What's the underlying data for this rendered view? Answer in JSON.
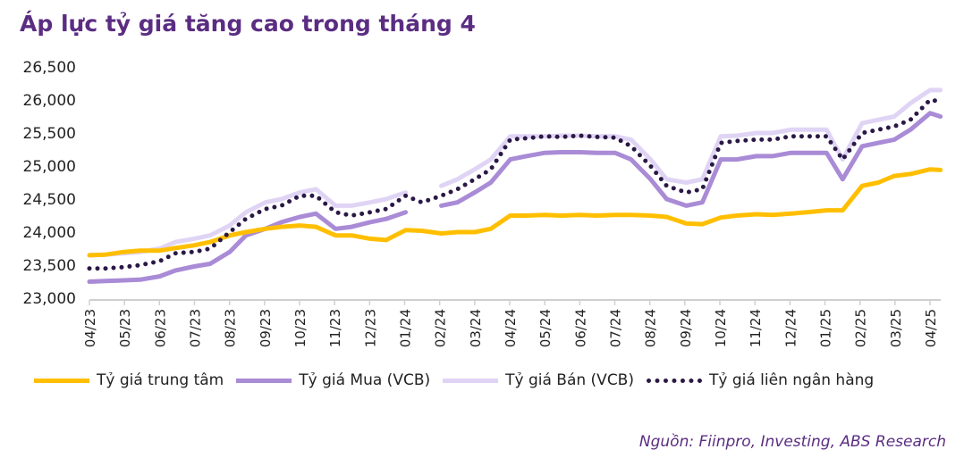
{
  "title": "Áp lực tỷ giá tăng cao trong tháng 4",
  "source": "Nguồn: Fiinpro, Investing, ABS Research",
  "chart_data": {
    "type": "line",
    "title": "Áp lực tỷ giá tăng cao trong tháng 4",
    "ylim": [
      23000,
      26500
    ],
    "yticks": [
      "23,000",
      "23,500",
      "24,000",
      "24,500",
      "25,000",
      "25,500",
      "26,000",
      "26,500"
    ],
    "ytick_values": [
      23000,
      23500,
      24000,
      24500,
      25000,
      25500,
      26000,
      26500
    ],
    "xticks": [
      "04/23",
      "05/23",
      "06/23",
      "07/23",
      "08/23",
      "09/23",
      "10/23",
      "11/23",
      "12/23",
      "01/24",
      "02/24",
      "03/24",
      "04/24",
      "05/24",
      "06/24",
      "07/24",
      "08/24",
      "09/24",
      "10/24",
      "11/24",
      "12/24",
      "01/25",
      "02/25",
      "03/25",
      "04/25"
    ],
    "grid": false,
    "legend_position": "bottom",
    "x": [
      "2023-04-01",
      "2023-04-15",
      "2023-05-01",
      "2023-05-15",
      "2023-06-01",
      "2023-06-15",
      "2023-07-01",
      "2023-07-15",
      "2023-08-01",
      "2023-08-15",
      "2023-09-01",
      "2023-09-15",
      "2023-10-01",
      "2023-10-15",
      "2023-11-01",
      "2023-11-15",
      "2023-12-01",
      "2023-12-15",
      "2024-01-01",
      "2024-01-15",
      "2024-02-01",
      "2024-02-15",
      "2024-03-01",
      "2024-03-15",
      "2024-04-01",
      "2024-04-15",
      "2024-05-01",
      "2024-05-15",
      "2024-06-01",
      "2024-06-15",
      "2024-07-01",
      "2024-07-15",
      "2024-08-01",
      "2024-08-15",
      "2024-09-01",
      "2024-09-15",
      "2024-10-01",
      "2024-10-15",
      "2024-11-01",
      "2024-11-15",
      "2024-12-01",
      "2024-12-15",
      "2025-01-01",
      "2025-01-15",
      "2025-02-01",
      "2025-02-15",
      "2025-03-01",
      "2025-03-15",
      "2025-04-01",
      "2025-04-10"
    ],
    "series": [
      {
        "name": "Tỷ giá trung tâm",
        "color": "#ffbf00",
        "style": "solid",
        "values": [
          23650,
          23660,
          23700,
          23720,
          23720,
          23760,
          23800,
          23850,
          23950,
          24000,
          24050,
          24080,
          24100,
          24080,
          23950,
          23950,
          23900,
          23880,
          24030,
          24020,
          23980,
          24000,
          24000,
          24050,
          24250,
          24250,
          24260,
          24250,
          24260,
          24250,
          24260,
          24260,
          24250,
          24230,
          24130,
          24120,
          24220,
          24250,
          24270,
          24260,
          24280,
          24300,
          24330,
          24330,
          24700,
          24750,
          24850,
          24880,
          24950,
          24940
        ]
      },
      {
        "name": "Tỷ giá Mua (VCB)",
        "color": "#a98bd6",
        "style": "solid",
        "values": [
          23250,
          23260,
          23270,
          23280,
          23330,
          23420,
          23480,
          23520,
          23700,
          23950,
          24050,
          24150,
          24230,
          24280,
          24050,
          24080,
          24150,
          24200,
          24300,
          null,
          24400,
          24450,
          24600,
          24750,
          25100,
          25150,
          25200,
          25210,
          25210,
          25200,
          25200,
          25100,
          24800,
          24500,
          24400,
          24450,
          25100,
          25100,
          25150,
          25150,
          25200,
          25200,
          25200,
          24800,
          25300,
          25350,
          25400,
          25550,
          25800,
          25750
        ]
      },
      {
        "name": "Tỷ giá Bán (VCB)",
        "color": "#e0d4f5",
        "style": "solid",
        "values": [
          23650,
          23660,
          23680,
          23700,
          23750,
          23850,
          23900,
          23950,
          24100,
          24300,
          24450,
          24500,
          24600,
          24650,
          24400,
          24400,
          24450,
          24500,
          24600,
          null,
          24700,
          24800,
          24950,
          25100,
          25450,
          25450,
          25450,
          25460,
          25460,
          25450,
          25450,
          25400,
          25100,
          24800,
          24750,
          24800,
          25450,
          25460,
          25500,
          25500,
          25550,
          25550,
          25550,
          25100,
          25650,
          25700,
          25750,
          25950,
          26150,
          26150
        ]
      },
      {
        "name": "Tỷ giá liên ngân hàng",
        "color": "#2a1845",
        "style": "dotted",
        "values": [
          23450,
          23450,
          23470,
          23500,
          23560,
          23680,
          23700,
          23750,
          24000,
          24200,
          24350,
          24400,
          24550,
          24550,
          24300,
          24250,
          24300,
          24350,
          24550,
          24450,
          24550,
          24650,
          24800,
          24950,
          25400,
          25420,
          25450,
          25440,
          25460,
          25440,
          25430,
          25300,
          25000,
          24700,
          24600,
          24650,
          25350,
          25380,
          25400,
          25400,
          25450,
          25450,
          25450,
          25100,
          25500,
          25550,
          25600,
          25700,
          26000,
          25980
        ]
      }
    ]
  }
}
